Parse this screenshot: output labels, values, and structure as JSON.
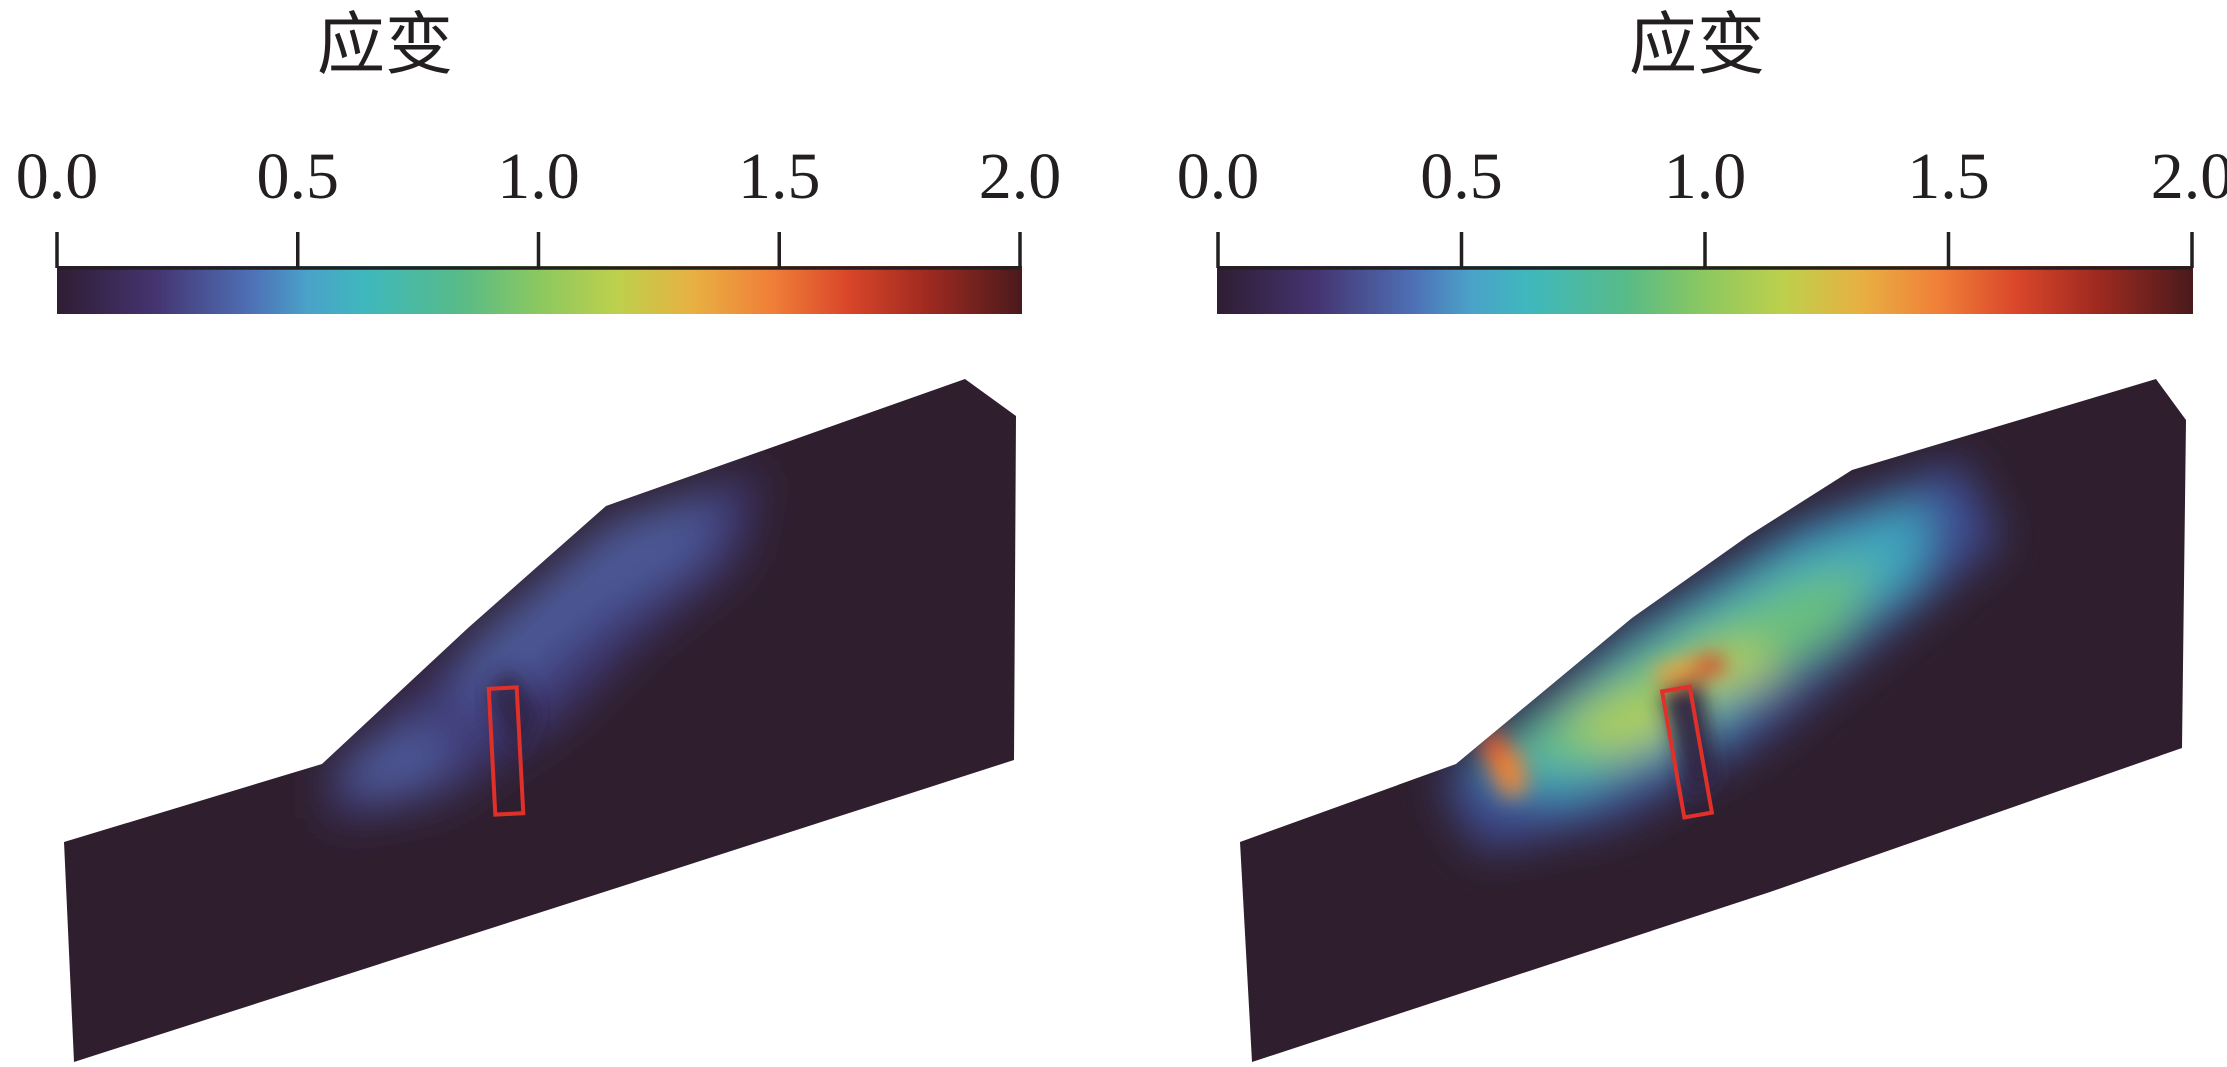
{
  "panels": [
    {
      "id": "left",
      "colorbar": {
        "title": "应变",
        "ticks": [
          "0.0",
          "0.5",
          "1.0",
          "1.5",
          "2.0"
        ],
        "tick_values": [
          0.0,
          0.5,
          1.0,
          1.5,
          2.0
        ],
        "range": [
          0.0,
          2.0
        ]
      },
      "slope_max_strain": "low"
    },
    {
      "id": "right",
      "colorbar": {
        "title": "应变",
        "ticks": [
          "0.0",
          "0.5",
          "1.0",
          "1.5",
          "2.0"
        ],
        "tick_values": [
          0.0,
          0.5,
          1.0,
          1.5,
          2.0
        ],
        "range": [
          0.0,
          2.0
        ]
      },
      "slope_max_strain": "high"
    }
  ],
  "colors": {
    "background": "#2e1f2c",
    "pile_outline": "#e0302a",
    "colormap": [
      "#2f1d33",
      "#4a3a8a",
      "#4a8fc4",
      "#3fb8c0",
      "#5dc08a",
      "#a6d05a",
      "#f0a040",
      "#e0542a",
      "#a8281e",
      "#4a1a1a"
    ]
  }
}
